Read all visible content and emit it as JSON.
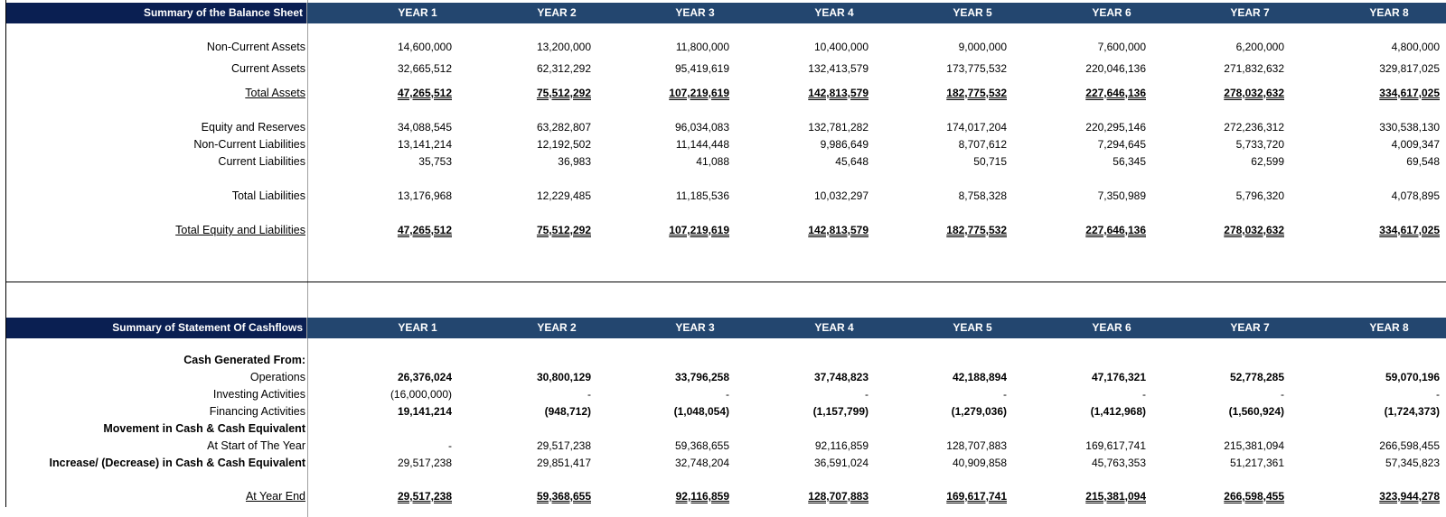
{
  "years": [
    "YEAR 1",
    "YEAR 2",
    "YEAR 3",
    "YEAR 4",
    "YEAR 5",
    "YEAR 6",
    "YEAR 7",
    "YEAR 8"
  ],
  "balance_sheet": {
    "title": "Summary of the Balance Sheet",
    "rows": [
      {
        "label": "Non-Current Assets",
        "values": [
          "14,600,000",
          "13,200,000",
          "11,800,000",
          "10,400,000",
          "9,000,000",
          "7,600,000",
          "6,200,000",
          "4,800,000"
        ]
      },
      {
        "label": "Current Assets",
        "values": [
          "32,665,512",
          "62,312,292",
          "95,419,619",
          "132,413,579",
          "173,775,532",
          "220,046,136",
          "271,832,632",
          "329,817,025"
        ]
      },
      {
        "label": "Total Assets",
        "values": [
          "47,265,512",
          "75,512,292",
          "107,219,619",
          "142,813,579",
          "182,775,532",
          "227,646,136",
          "278,032,632",
          "334,617,025"
        ]
      },
      {
        "label": "Equity and Reserves",
        "values": [
          "34,088,545",
          "63,282,807",
          "96,034,083",
          "132,781,282",
          "174,017,204",
          "220,295,146",
          "272,236,312",
          "330,538,130"
        ]
      },
      {
        "label": "Non-Current Liabilities",
        "values": [
          "13,141,214",
          "12,192,502",
          "11,144,448",
          "9,986,649",
          "8,707,612",
          "7,294,645",
          "5,733,720",
          "4,009,347"
        ]
      },
      {
        "label": "Current Liabilities",
        "values": [
          "35,753",
          "36,983",
          "41,088",
          "45,648",
          "50,715",
          "56,345",
          "62,599",
          "69,548"
        ]
      },
      {
        "label": "Total Liabilities",
        "values": [
          "13,176,968",
          "12,229,485",
          "11,185,536",
          "10,032,297",
          "8,758,328",
          "7,350,989",
          "5,796,320",
          "4,078,895"
        ]
      },
      {
        "label": "Total Equity and Liabilities",
        "values": [
          "47,265,512",
          "75,512,292",
          "107,219,619",
          "142,813,579",
          "182,775,532",
          "227,646,136",
          "278,032,632",
          "334,617,025"
        ]
      }
    ]
  },
  "cashflows": {
    "title": "Summary of Statement Of Cashflows",
    "rows": [
      {
        "label": "Cash Generated From:",
        "values": [
          "",
          "",
          "",
          "",
          "",
          "",
          "",
          ""
        ]
      },
      {
        "label": "Operations",
        "values": [
          "26,376,024",
          "30,800,129",
          "33,796,258",
          "37,748,823",
          "42,188,894",
          "47,176,321",
          "52,778,285",
          "59,070,196"
        ]
      },
      {
        "label": "Investing Activities",
        "values": [
          "(16,000,000)",
          "-",
          "-",
          "-",
          "-",
          "-",
          "-",
          "-"
        ]
      },
      {
        "label": "Financing Activities",
        "values": [
          "19,141,214",
          "(948,712)",
          "(1,048,054)",
          "(1,157,799)",
          "(1,279,036)",
          "(1,412,968)",
          "(1,560,924)",
          "(1,724,373)"
        ]
      },
      {
        "label": "Movement in Cash & Cash Equivalent",
        "values": [
          "",
          "",
          "",
          "",
          "",
          "",
          "",
          ""
        ]
      },
      {
        "label": "At Start of The Year",
        "values": [
          "-",
          "29,517,238",
          "59,368,655",
          "92,116,859",
          "128,707,883",
          "169,617,741",
          "215,381,094",
          "266,598,455"
        ]
      },
      {
        "label": "Increase/ (Decrease) in Cash & Cash Equivalent",
        "values": [
          "29,517,238",
          "29,851,417",
          "32,748,204",
          "36,591,024",
          "40,909,858",
          "45,763,353",
          "51,217,361",
          "57,345,823"
        ]
      },
      {
        "label": "At Year End",
        "values": [
          "29,517,238",
          "59,368,655",
          "92,116,859",
          "128,707,883",
          "169,617,741",
          "215,381,094",
          "266,598,455",
          "323,944,278"
        ]
      }
    ]
  },
  "colors": {
    "title_band": "#0a1f52",
    "year_band": "#23466f"
  }
}
